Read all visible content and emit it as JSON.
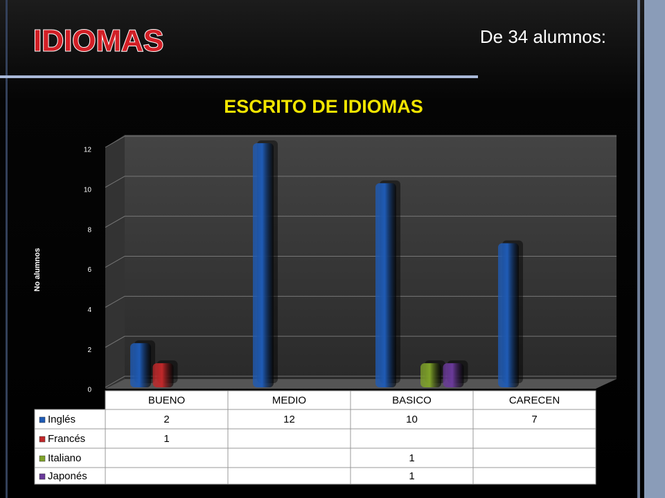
{
  "header": {
    "title": "IDIOMAS",
    "subtitle": "De 34 alumnos:"
  },
  "chart_data": {
    "type": "bar",
    "title": "ESCRITO DE IDIOMAS",
    "y_label": "No alumnos",
    "categories": [
      "BUENO",
      "MEDIO",
      "BASICO",
      "CARECEN"
    ],
    "series": [
      {
        "name": "Inglés",
        "color": "#1f5bb5",
        "values": [
          2,
          12,
          10,
          7
        ]
      },
      {
        "name": "Francés",
        "color": "#c0282a",
        "values": [
          1,
          null,
          null,
          null
        ]
      },
      {
        "name": "Italiano",
        "color": "#7fa22a",
        "values": [
          null,
          null,
          1,
          null
        ]
      },
      {
        "name": "Japonés",
        "color": "#6a3a9a",
        "values": [
          null,
          null,
          1,
          null
        ]
      }
    ],
    "ylim": [
      0,
      12
    ],
    "yticks": [
      0,
      2,
      4,
      6,
      8,
      10,
      12
    ],
    "grid": true
  }
}
